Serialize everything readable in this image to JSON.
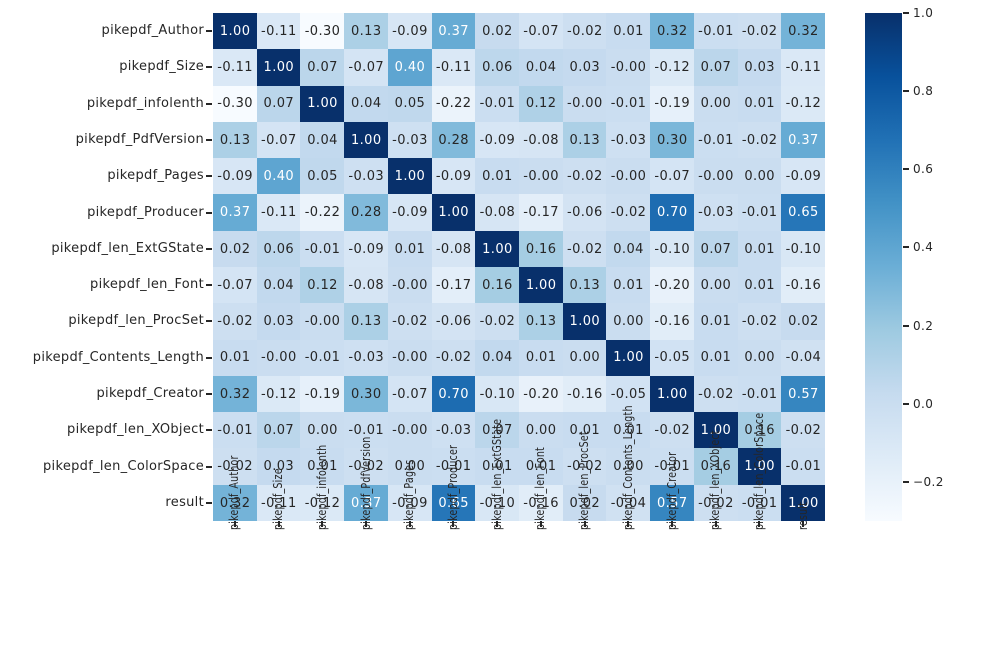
{
  "chart_data": {
    "type": "heatmap",
    "title": "",
    "xlabel": "",
    "ylabel": "",
    "labels": [
      "pikepdf_Author",
      "pikepdf_Size",
      "pikepdf_infolenth",
      "pikepdf_PdfVersion",
      "pikepdf_Pages",
      "pikepdf_Producer",
      "pikepdf_len_ExtGState",
      "pikepdf_len_Font",
      "pikepdf_len_ProcSet",
      "pikepdf_Contents_Length",
      "pikepdf_Creator",
      "pikepdf_len_XObject",
      "pikepdf_len_ColorSpace",
      "result"
    ],
    "matrix": [
      [
        "1.00",
        "-0.11",
        "-0.30",
        "0.13",
        "-0.09",
        "0.37",
        "0.02",
        "-0.07",
        "-0.02",
        "0.01",
        "0.32",
        "-0.01",
        "-0.02",
        "0.32"
      ],
      [
        "-0.11",
        "1.00",
        "0.07",
        "-0.07",
        "0.40",
        "-0.11",
        "0.06",
        "0.04",
        "0.03",
        "-0.00",
        "-0.12",
        "0.07",
        "0.03",
        "-0.11"
      ],
      [
        "-0.30",
        "0.07",
        "1.00",
        "0.04",
        "0.05",
        "-0.22",
        "-0.01",
        "0.12",
        "-0.00",
        "-0.01",
        "-0.19",
        "0.00",
        "0.01",
        "-0.12"
      ],
      [
        "0.13",
        "-0.07",
        "0.04",
        "1.00",
        "-0.03",
        "0.28",
        "-0.09",
        "-0.08",
        "0.13",
        "-0.03",
        "0.30",
        "-0.01",
        "-0.02",
        "0.37"
      ],
      [
        "-0.09",
        "0.40",
        "0.05",
        "-0.03",
        "1.00",
        "-0.09",
        "0.01",
        "-0.00",
        "-0.02",
        "-0.00",
        "-0.07",
        "-0.00",
        "0.00",
        "-0.09"
      ],
      [
        "0.37",
        "-0.11",
        "-0.22",
        "0.28",
        "-0.09",
        "1.00",
        "-0.08",
        "-0.17",
        "-0.06",
        "-0.02",
        "0.70",
        "-0.03",
        "-0.01",
        "0.65"
      ],
      [
        "0.02",
        "0.06",
        "-0.01",
        "-0.09",
        "0.01",
        "-0.08",
        "1.00",
        "0.16",
        "-0.02",
        "0.04",
        "-0.10",
        "0.07",
        "0.01",
        "-0.10"
      ],
      [
        "-0.07",
        "0.04",
        "0.12",
        "-0.08",
        "-0.00",
        "-0.17",
        "0.16",
        "1.00",
        "0.13",
        "0.01",
        "-0.20",
        "0.00",
        "0.01",
        "-0.16"
      ],
      [
        "-0.02",
        "0.03",
        "-0.00",
        "0.13",
        "-0.02",
        "-0.06",
        "-0.02",
        "0.13",
        "1.00",
        "0.00",
        "-0.16",
        "0.01",
        "-0.02",
        "0.02"
      ],
      [
        "0.01",
        "-0.00",
        "-0.01",
        "-0.03",
        "-0.00",
        "-0.02",
        "0.04",
        "0.01",
        "0.00",
        "1.00",
        "-0.05",
        "0.01",
        "0.00",
        "-0.04"
      ],
      [
        "0.32",
        "-0.12",
        "-0.19",
        "0.30",
        "-0.07",
        "0.70",
        "-0.10",
        "-0.20",
        "-0.16",
        "-0.05",
        "1.00",
        "-0.02",
        "-0.01",
        "0.57"
      ],
      [
        "-0.01",
        "0.07",
        "0.00",
        "-0.01",
        "-0.00",
        "-0.03",
        "0.07",
        "0.00",
        "0.01",
        "0.01",
        "-0.02",
        "1.00",
        "0.16",
        "-0.02"
      ],
      [
        "-0.02",
        "0.03",
        "0.01",
        "-0.02",
        "0.00",
        "-0.01",
        "0.01",
        "0.01",
        "-0.02",
        "0.00",
        "-0.01",
        "0.16",
        "1.00",
        "-0.01"
      ],
      [
        "0.32",
        "-0.11",
        "-0.12",
        "0.37",
        "-0.09",
        "0.65",
        "-0.10",
        "-0.16",
        "0.02",
        "-0.04",
        "0.57",
        "-0.02",
        "-0.01",
        "1.00"
      ]
    ],
    "colormap": "Blues",
    "colormap_anchors": [
      "#f7fbff",
      "#deebf7",
      "#c6dbef",
      "#9ecae1",
      "#6baed6",
      "#4292c6",
      "#2171b5",
      "#08519c",
      "#08306b"
    ],
    "vmin": -0.3,
    "vmax": 1.0,
    "colorbar": {
      "position": "right",
      "tick_labels": [
        "1.0",
        "0.8",
        "0.6",
        "0.4",
        "0.2",
        "0.0",
        "−0.2"
      ],
      "tick_values": [
        1.0,
        0.8,
        0.6,
        0.4,
        0.2,
        0.0,
        -0.2
      ]
    },
    "annotation_colors": {
      "dark": "#262626",
      "light": "#ffffff"
    },
    "grid": false,
    "legend": "colorbar"
  }
}
